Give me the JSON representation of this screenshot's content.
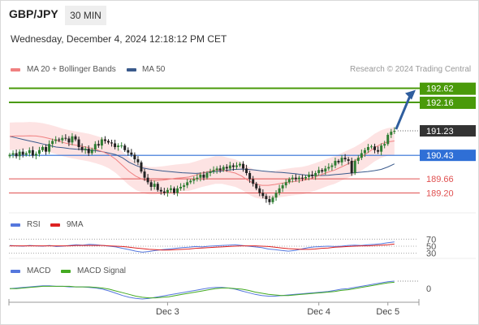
{
  "header": {
    "pair": "GBP/JPY",
    "timeframe": "30 MIN",
    "datetime": "Wednesday, December 4, 2024 12:18:12 PM CET"
  },
  "legends": {
    "main": [
      {
        "label": "MA 20 + Bollinger Bands",
        "color": "#f08080"
      },
      {
        "label": "MA 50",
        "color": "#3a5a8c"
      }
    ],
    "rsi": [
      {
        "label": "RSI",
        "color": "#5577dd"
      },
      {
        "label": "9MA",
        "color": "#dd2222"
      }
    ],
    "macd": [
      {
        "label": "MACD",
        "color": "#5577dd"
      },
      {
        "label": "MACD Signal",
        "color": "#44aa22"
      }
    ]
  },
  "credit": "Research © 2024 Trading Central",
  "colors": {
    "up": "#2e7d32",
    "down": "#222222",
    "target": "#4a9a0a",
    "pivot": "#2f6fd6",
    "support": "#e05050",
    "last": "#333333"
  },
  "chart_data": [
    {
      "type": "candlestick",
      "panel": "price",
      "ylim": [
        188.55,
        192.85
      ],
      "x_ticks": [
        {
          "label": "Dec 3",
          "index": 48
        },
        {
          "label": "Dec 4",
          "index": 94
        },
        {
          "label": "Dec 5",
          "index": 115
        }
      ],
      "close": [
        190.45,
        190.5,
        190.4,
        190.55,
        190.45,
        190.5,
        190.6,
        190.42,
        190.48,
        190.6,
        190.7,
        190.55,
        190.8,
        190.9,
        190.95,
        190.92,
        191.0,
        190.98,
        190.85,
        191.05,
        190.95,
        190.7,
        190.6,
        190.65,
        190.5,
        190.62,
        190.8,
        190.75,
        190.95,
        190.9,
        190.85,
        190.82,
        190.7,
        190.75,
        190.75,
        190.6,
        190.52,
        190.45,
        190.3,
        190.2,
        189.9,
        189.7,
        189.55,
        189.4,
        189.5,
        189.3,
        189.25,
        189.2,
        189.3,
        189.35,
        189.2,
        189.35,
        189.4,
        189.45,
        189.55,
        189.6,
        189.65,
        189.7,
        189.8,
        189.7,
        189.85,
        189.9,
        189.95,
        190.0,
        189.95,
        190.05,
        190.0,
        190.1,
        190.05,
        190.1,
        190.15,
        190.0,
        189.85,
        189.65,
        189.5,
        189.35,
        189.2,
        189.1,
        189.0,
        188.9,
        189.05,
        189.2,
        189.35,
        189.45,
        189.55,
        189.65,
        189.7,
        189.65,
        189.7,
        189.68,
        189.72,
        189.8,
        189.75,
        189.85,
        189.95,
        189.9,
        190.0,
        190.05,
        190.1,
        190.25,
        190.2,
        190.35,
        190.3,
        190.25,
        189.85,
        190.25,
        190.35,
        190.5,
        190.6,
        190.7,
        190.72,
        190.6,
        190.55,
        190.75,
        190.8,
        191.1,
        191.2,
        191.23
      ],
      "overlays": [
        {
          "name": "MA 20",
          "values": [
            191.05,
            191.06,
            191.06,
            191.07,
            191.06,
            191.03,
            190.98,
            190.92,
            190.85,
            190.8,
            190.76,
            190.72,
            190.68,
            190.62,
            190.55,
            190.45,
            190.3,
            190.1,
            189.9,
            189.75,
            189.65,
            189.6,
            189.6,
            189.62,
            189.65,
            189.68,
            189.7,
            189.72,
            189.78,
            189.85,
            189.9,
            189.95,
            189.95,
            189.9,
            189.85,
            189.75,
            189.6,
            189.5,
            189.45,
            189.45,
            189.48,
            189.52,
            189.55,
            189.58,
            189.6,
            189.65,
            189.72,
            189.8,
            189.88,
            189.95,
            190.05,
            190.15,
            190.25,
            190.38,
            190.52,
            190.68,
            190.8,
            190.87,
            190.9
          ]
        },
        {
          "name": "MA 50",
          "values": [
            191.05,
            191.0,
            190.95,
            190.9,
            190.85,
            190.8,
            190.75,
            190.7,
            190.68,
            190.65,
            190.63,
            190.62,
            190.6,
            190.58,
            190.55,
            190.5,
            190.45,
            190.35,
            190.2,
            190.1,
            190.02,
            189.98,
            189.95,
            189.92,
            189.9,
            189.88,
            189.86,
            189.85,
            189.84,
            189.85,
            189.88,
            189.9,
            189.92,
            189.95,
            189.97,
            189.98,
            189.97,
            189.95,
            189.92,
            189.9,
            189.88,
            189.87,
            189.85,
            189.83,
            189.8,
            189.78,
            189.77,
            189.77,
            189.78,
            189.8,
            189.82,
            189.84,
            189.86,
            189.88,
            189.9,
            189.93,
            189.97,
            190.05,
            190.15
          ]
        }
      ],
      "levels": [
        {
          "value": 192.62,
          "label": "192.62",
          "kind": "target"
        },
        {
          "value": 192.16,
          "label": "192.16",
          "kind": "target"
        },
        {
          "value": 191.23,
          "label": "191.23",
          "kind": "last"
        },
        {
          "value": 190.43,
          "label": "190.43",
          "kind": "pivot"
        },
        {
          "value": 189.66,
          "label": "189.66",
          "kind": "support"
        },
        {
          "value": 189.2,
          "label": "189.20",
          "kind": "support"
        }
      ],
      "projection": {
        "from": 191.23,
        "to": 192.62
      }
    },
    {
      "type": "line",
      "panel": "rsi",
      "ylim": [
        20,
        80
      ],
      "y_ticks": [
        "70",
        "50",
        "30"
      ],
      "series": [
        {
          "name": "RSI",
          "values": [
            52,
            51,
            50,
            52,
            51,
            50,
            52,
            49,
            50,
            52,
            54,
            53,
            55,
            54,
            52,
            50,
            48,
            44,
            40,
            36,
            33,
            35,
            38,
            40,
            42,
            44,
            46,
            47,
            49,
            48,
            50,
            51,
            52,
            53,
            54,
            52,
            50,
            48,
            46,
            42,
            40,
            38,
            36,
            38,
            42,
            46,
            48,
            49,
            50,
            49,
            50,
            52,
            53,
            52,
            54,
            55,
            57,
            60,
            62
          ]
        },
        {
          "name": "9MA",
          "values": [
            51,
            51,
            51,
            51,
            51,
            51,
            51,
            51,
            51,
            51,
            52,
            52,
            52,
            52,
            52,
            51,
            50,
            49,
            47,
            45,
            43,
            41,
            40,
            39,
            39,
            40,
            41,
            42,
            44,
            45,
            46,
            47,
            48,
            49,
            50,
            51,
            51,
            51,
            50,
            49,
            47,
            45,
            43,
            42,
            41,
            41,
            42,
            44,
            45,
            47,
            48,
            49,
            50,
            51,
            51,
            52,
            53,
            54,
            56
          ]
        }
      ]
    },
    {
      "type": "line",
      "panel": "macd",
      "y_ticks": [
        "0"
      ],
      "series": [
        {
          "name": "MACD",
          "values": [
            0.02,
            0.03,
            0.04,
            0.05,
            0.06,
            0.07,
            0.07,
            0.06,
            0.06,
            0.05,
            0.05,
            0.05,
            0.04,
            0.03,
            0.01,
            -0.02,
            -0.06,
            -0.1,
            -0.13,
            -0.15,
            -0.16,
            -0.15,
            -0.13,
            -0.11,
            -0.09,
            -0.07,
            -0.05,
            -0.03,
            -0.01,
            0.01,
            0.03,
            0.04,
            0.04,
            0.03,
            0.01,
            -0.02,
            -0.05,
            -0.08,
            -0.1,
            -0.11,
            -0.11,
            -0.1,
            -0.09,
            -0.08,
            -0.07,
            -0.06,
            -0.05,
            -0.04,
            -0.03,
            -0.01,
            0.01,
            0.02,
            0.04,
            0.06,
            0.08,
            0.1,
            0.12,
            0.14,
            0.15
          ]
        },
        {
          "name": "MACD Signal",
          "values": [
            0.02,
            0.02,
            0.03,
            0.04,
            0.05,
            0.06,
            0.06,
            0.06,
            0.06,
            0.06,
            0.05,
            0.05,
            0.05,
            0.04,
            0.03,
            0.01,
            -0.02,
            -0.05,
            -0.08,
            -0.11,
            -0.13,
            -0.14,
            -0.14,
            -0.13,
            -0.12,
            -0.1,
            -0.08,
            -0.06,
            -0.04,
            -0.02,
            0.0,
            0.02,
            0.03,
            0.03,
            0.02,
            0.01,
            -0.01,
            -0.04,
            -0.06,
            -0.08,
            -0.09,
            -0.1,
            -0.1,
            -0.09,
            -0.08,
            -0.07,
            -0.06,
            -0.05,
            -0.04,
            -0.03,
            -0.01,
            0.0,
            0.02,
            0.04,
            0.06,
            0.08,
            0.1,
            0.12,
            0.13
          ]
        }
      ]
    }
  ]
}
